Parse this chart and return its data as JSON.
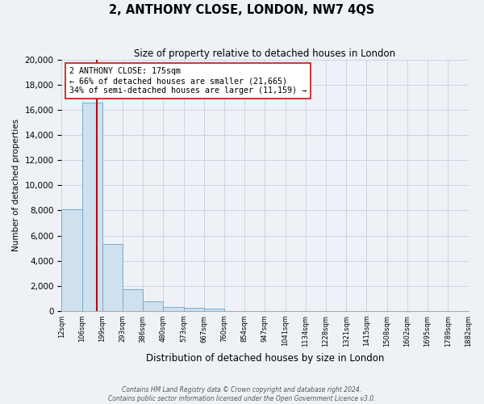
{
  "title": "2, ANTHONY CLOSE, LONDON, NW7 4QS",
  "subtitle": "Size of property relative to detached houses in London",
  "xlabel": "Distribution of detached houses by size in London",
  "ylabel": "Number of detached properties",
  "bar_values": [
    8100,
    16600,
    5300,
    1750,
    750,
    300,
    250,
    200,
    0,
    0,
    0,
    0,
    0,
    0,
    0,
    0,
    0,
    0,
    0,
    0
  ],
  "bar_labels": [
    "12sqm",
    "106sqm",
    "199sqm",
    "293sqm",
    "386sqm",
    "480sqm",
    "573sqm",
    "667sqm",
    "760sqm",
    "854sqm",
    "947sqm",
    "1041sqm",
    "1134sqm",
    "1228sqm",
    "1321sqm",
    "1415sqm",
    "1508sqm",
    "1602sqm",
    "1695sqm",
    "1789sqm",
    "1882sqm"
  ],
  "bar_color": "#cfe0ef",
  "bar_edge_color": "#7aaac8",
  "property_line_color": "#aa1111",
  "annotation_title": "2 ANTHONY CLOSE: 175sqm",
  "annotation_line1": "← 66% of detached houses are smaller (21,665)",
  "annotation_line2": "34% of semi-detached houses are larger (11,159) →",
  "annotation_box_color": "#ffffff",
  "annotation_box_edge": "#cc2222",
  "ylim": [
    0,
    20000
  ],
  "yticks": [
    0,
    2000,
    4000,
    6000,
    8000,
    10000,
    12000,
    14000,
    16000,
    18000,
    20000
  ],
  "footer_line1": "Contains HM Land Registry data © Crown copyright and database right 2024.",
  "footer_line2": "Contains public sector information licensed under the Open Government Licence v3.0.",
  "bg_color": "#eef2f7",
  "plot_bg_color": "#eef2f7",
  "grid_color": "#c8d0dc"
}
